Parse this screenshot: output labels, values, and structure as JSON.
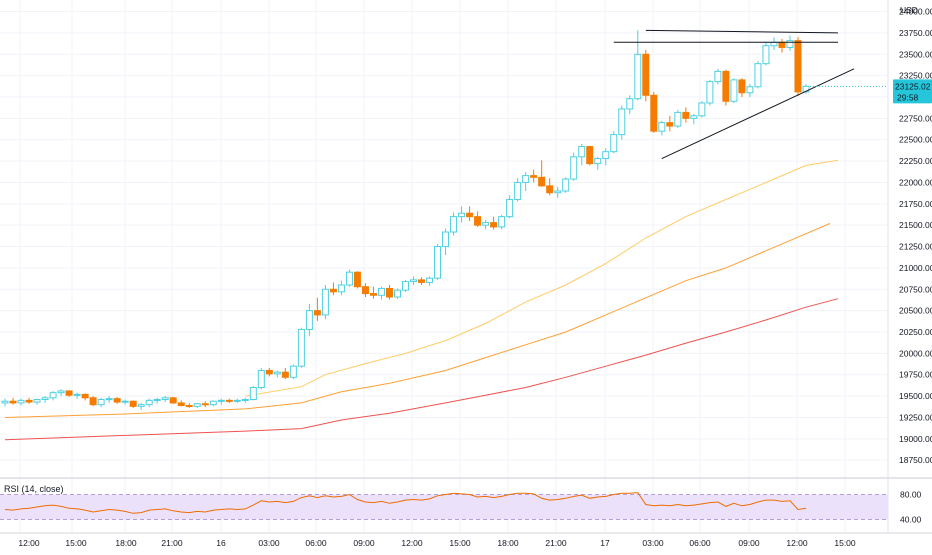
{
  "header": {
    "currency": "USD"
  },
  "price_scale": {
    "labels": [
      "24000.00",
      "23750.00",
      "23500.00",
      "23250.00",
      "22750.00",
      "22500.00",
      "22250.00",
      "22000.00",
      "21750.00",
      "21500.00",
      "21250.00",
      "21000.00",
      "20750.00",
      "20500.00",
      "20250.00",
      "20000.00",
      "19750.00",
      "19500.00",
      "19250.00",
      "19000.00",
      "18750.00"
    ],
    "last_price": "23125.02",
    "countdown": "29:58",
    "last_price_color": "#26c6da"
  },
  "time_axis": {
    "labels": [
      "12:00",
      "15:00",
      "18:00",
      "21:00",
      "16",
      "03:00",
      "06:00",
      "09:00",
      "12:00",
      "15:00",
      "18:00",
      "21:00",
      "17",
      "03:00",
      "06:00",
      "09:00",
      "12:00",
      "15:00"
    ]
  },
  "rsi": {
    "label": "RSI (14, close)",
    "upper": "80.00",
    "lower": "40.00",
    "band_color": "#ece1fb",
    "line_color": "#ef6c00"
  },
  "colors": {
    "up_candle": "#4dd0e1",
    "down_candle": "#f57c00",
    "ma_fast": "#ffcc66",
    "ma_mid": "#ff9f33",
    "ma_slow": "#ef5350",
    "grid": "#f0f3fa"
  },
  "chart_data": {
    "type": "candlestick",
    "timeframe_hours": 1,
    "first_bar": "15 10:00",
    "ohlc": [
      [
        19420,
        19470,
        19380,
        19440
      ],
      [
        19440,
        19480,
        19400,
        19420
      ],
      [
        19420,
        19470,
        19390,
        19450
      ],
      [
        19450,
        19480,
        19410,
        19430
      ],
      [
        19430,
        19470,
        19400,
        19460
      ],
      [
        19460,
        19500,
        19420,
        19480
      ],
      [
        19480,
        19560,
        19450,
        19540
      ],
      [
        19540,
        19580,
        19500,
        19560
      ],
      [
        19560,
        19570,
        19490,
        19510
      ],
      [
        19510,
        19540,
        19470,
        19520
      ],
      [
        19520,
        19530,
        19450,
        19480
      ],
      [
        19480,
        19500,
        19380,
        19400
      ],
      [
        19400,
        19480,
        19370,
        19460
      ],
      [
        19460,
        19500,
        19420,
        19470
      ],
      [
        19470,
        19490,
        19410,
        19430
      ],
      [
        19430,
        19460,
        19400,
        19440
      ],
      [
        19440,
        19450,
        19360,
        19380
      ],
      [
        19380,
        19420,
        19340,
        19400
      ],
      [
        19400,
        19470,
        19370,
        19450
      ],
      [
        19450,
        19480,
        19410,
        19460
      ],
      [
        19460,
        19500,
        19430,
        19480
      ],
      [
        19480,
        19490,
        19410,
        19420
      ],
      [
        19420,
        19450,
        19380,
        19390
      ],
      [
        19390,
        19420,
        19360,
        19380
      ],
      [
        19380,
        19420,
        19360,
        19410
      ],
      [
        19410,
        19440,
        19370,
        19400
      ],
      [
        19400,
        19450,
        19380,
        19440
      ],
      [
        19440,
        19470,
        19400,
        19450
      ],
      [
        19450,
        19470,
        19420,
        19440
      ],
      [
        19440,
        19470,
        19420,
        19450
      ],
      [
        19450,
        19480,
        19420,
        19460
      ],
      [
        19460,
        19620,
        19450,
        19600
      ],
      [
        19600,
        19830,
        19580,
        19800
      ],
      [
        19800,
        19830,
        19730,
        19760
      ],
      [
        19760,
        19800,
        19720,
        19780
      ],
      [
        19780,
        19830,
        19700,
        19720
      ],
      [
        19720,
        19870,
        19700,
        19850
      ],
      [
        19850,
        20300,
        19830,
        20280
      ],
      [
        20280,
        20580,
        20200,
        20500
      ],
      [
        20500,
        20650,
        20380,
        20450
      ],
      [
        20450,
        20800,
        20400,
        20750
      ],
      [
        20750,
        20830,
        20680,
        20720
      ],
      [
        20720,
        20850,
        20680,
        20800
      ],
      [
        20800,
        20980,
        20780,
        20950
      ],
      [
        20950,
        20960,
        20760,
        20780
      ],
      [
        20780,
        20820,
        20660,
        20700
      ],
      [
        20700,
        20780,
        20640,
        20680
      ],
      [
        20680,
        20780,
        20630,
        20760
      ],
      [
        20760,
        20800,
        20630,
        20660
      ],
      [
        20660,
        20760,
        20640,
        20740
      ],
      [
        20740,
        20860,
        20720,
        20840
      ],
      [
        20840,
        20900,
        20800,
        20860
      ],
      [
        20860,
        20890,
        20800,
        20830
      ],
      [
        20830,
        20900,
        20790,
        20880
      ],
      [
        20880,
        21280,
        20860,
        21250
      ],
      [
        21250,
        21460,
        21150,
        21420
      ],
      [
        21420,
        21650,
        21380,
        21600
      ],
      [
        21600,
        21720,
        21530,
        21640
      ],
      [
        21640,
        21720,
        21550,
        21600
      ],
      [
        21600,
        21660,
        21480,
        21500
      ],
      [
        21500,
        21560,
        21450,
        21530
      ],
      [
        21530,
        21600,
        21450,
        21480
      ],
      [
        21480,
        21620,
        21450,
        21600
      ],
      [
        21600,
        21850,
        21580,
        21800
      ],
      [
        21800,
        22050,
        21780,
        22000
      ],
      [
        22000,
        22120,
        21900,
        22080
      ],
      [
        22080,
        22150,
        22000,
        22060
      ],
      [
        22060,
        22260,
        21950,
        21960
      ],
      [
        21960,
        22050,
        21850,
        21880
      ],
      [
        21880,
        21950,
        21820,
        21900
      ],
      [
        21900,
        22060,
        21880,
        22040
      ],
      [
        22040,
        22350,
        22020,
        22300
      ],
      [
        22300,
        22450,
        22200,
        22420
      ],
      [
        22420,
        22430,
        22200,
        22220
      ],
      [
        22220,
        22300,
        22150,
        22280
      ],
      [
        22280,
        22400,
        22200,
        22360
      ],
      [
        22360,
        22600,
        22340,
        22560
      ],
      [
        22560,
        22900,
        22500,
        22860
      ],
      [
        22860,
        23020,
        22800,
        22980
      ],
      [
        22980,
        23780,
        22960,
        23500
      ],
      [
        23500,
        23550,
        22950,
        23020
      ],
      [
        23020,
        23060,
        22580,
        22600
      ],
      [
        22600,
        22720,
        22550,
        22700
      ],
      [
        22700,
        22780,
        22600,
        22660
      ],
      [
        22660,
        22850,
        22640,
        22820
      ],
      [
        22820,
        22880,
        22700,
        22750
      ],
      [
        22750,
        22800,
        22680,
        22780
      ],
      [
        22780,
        22950,
        22760,
        22930
      ],
      [
        22930,
        23200,
        22900,
        23180
      ],
      [
        23180,
        23330,
        23150,
        23300
      ],
      [
        23300,
        23320,
        22900,
        22950
      ],
      [
        22950,
        23220,
        22930,
        23200
      ],
      [
        23200,
        23220,
        23000,
        23050
      ],
      [
        23050,
        23150,
        23000,
        23120
      ],
      [
        23120,
        23420,
        23100,
        23390
      ],
      [
        23390,
        23650,
        23370,
        23600
      ],
      [
        23600,
        23700,
        23550,
        23640
      ],
      [
        23640,
        23680,
        23520,
        23580
      ],
      [
        23580,
        23720,
        23540,
        23660
      ],
      [
        23660,
        23700,
        23010,
        23060
      ],
      [
        23060,
        23150,
        23040,
        23125
      ]
    ],
    "moving_averages": [
      {
        "points": [
          [
            30,
            19500
          ],
          [
            37,
            19610
          ],
          [
            40,
            19750
          ],
          [
            45,
            19880
          ],
          [
            50,
            20000
          ],
          [
            55,
            20150
          ],
          [
            60,
            20350
          ],
          [
            65,
            20600
          ],
          [
            70,
            20800
          ],
          [
            75,
            21050
          ],
          [
            80,
            21350
          ],
          [
            85,
            21600
          ],
          [
            90,
            21800
          ],
          [
            95,
            22000
          ],
          [
            100,
            22200
          ],
          [
            104,
            22260
          ]
        ]
      },
      {
        "points": [
          [
            0,
            19250
          ],
          [
            15,
            19290
          ],
          [
            30,
            19350
          ],
          [
            37,
            19420
          ],
          [
            42,
            19550
          ],
          [
            48,
            19650
          ],
          [
            55,
            19800
          ],
          [
            60,
            19950
          ],
          [
            65,
            20100
          ],
          [
            70,
            20250
          ],
          [
            75,
            20450
          ],
          [
            80,
            20650
          ],
          [
            85,
            20850
          ],
          [
            90,
            21000
          ],
          [
            95,
            21200
          ],
          [
            100,
            21400
          ],
          [
            103,
            21520
          ]
        ]
      },
      {
        "points": [
          [
            0,
            18990
          ],
          [
            15,
            19040
          ],
          [
            30,
            19090
          ],
          [
            37,
            19120
          ],
          [
            42,
            19220
          ],
          [
            48,
            19300
          ],
          [
            55,
            19420
          ],
          [
            60,
            19510
          ],
          [
            65,
            19600
          ],
          [
            70,
            19720
          ],
          [
            75,
            19850
          ],
          [
            80,
            19980
          ],
          [
            85,
            20120
          ],
          [
            90,
            20250
          ],
          [
            95,
            20390
          ],
          [
            100,
            20540
          ],
          [
            104,
            20640
          ]
        ]
      }
    ],
    "trendlines": [
      {
        "from": [
          80,
          23780
        ],
        "to": [
          104,
          23750
        ]
      },
      {
        "from": [
          76,
          23640
        ],
        "to": [
          104,
          23640
        ]
      },
      {
        "from": [
          82,
          22280
        ],
        "to": [
          106,
          23330
        ]
      }
    ],
    "rsi": {
      "levels": [
        80,
        40
      ],
      "values": [
        56,
        55,
        57,
        58,
        60,
        62,
        63,
        61,
        58,
        57,
        55,
        52,
        54,
        56,
        55,
        53,
        50,
        51,
        55,
        56,
        57,
        54,
        52,
        51,
        53,
        52,
        55,
        56,
        57,
        56,
        57,
        63,
        70,
        68,
        69,
        67,
        69,
        75,
        78,
        75,
        78,
        76,
        77,
        80,
        72,
        68,
        67,
        69,
        66,
        68,
        71,
        72,
        71,
        73,
        78,
        80,
        82,
        81,
        80,
        76,
        77,
        75,
        77,
        80,
        82,
        82,
        81,
        74,
        71,
        72,
        74,
        77,
        79,
        74,
        76,
        77,
        80,
        82,
        82,
        83,
        64,
        62,
        63,
        62,
        64,
        62,
        63,
        65,
        67,
        68,
        61,
        66,
        62,
        64,
        68,
        71,
        71,
        69,
        70,
        56,
        58
      ]
    },
    "ylim": [
      18600,
      24100
    ],
    "rsi_ylim": [
      20,
      100
    ]
  }
}
